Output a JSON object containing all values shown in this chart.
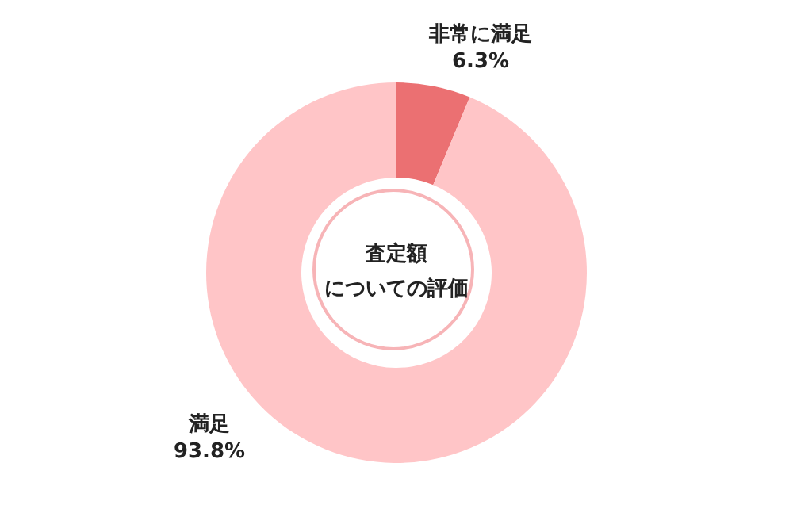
{
  "chart_data": {
    "type": "donut",
    "title": "査定額",
    "subtitle": "についての評価",
    "categories": [
      "非常に満足",
      "満足"
    ],
    "values": [
      6.3,
      93.8
    ],
    "value_labels": [
      "6.3%",
      "93.8%"
    ],
    "colors": [
      "#eb7072",
      "#ffc5c7"
    ],
    "legend": false
  }
}
